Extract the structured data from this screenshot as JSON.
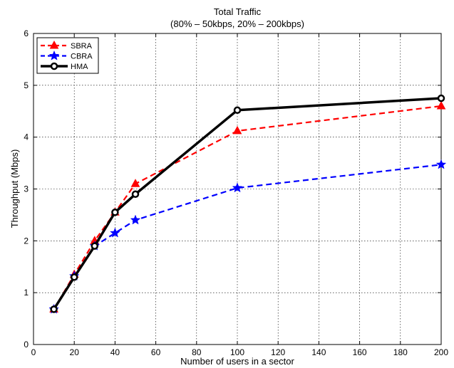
{
  "chart_data": {
    "type": "line",
    "title": "Total Traffic",
    "subtitle": "(80% – 50kbps, 20% – 200kbps)",
    "xlabel": "Number of users in a sector",
    "ylabel": "Throughput (Mbps)",
    "xlim": [
      0,
      200
    ],
    "ylim": [
      0,
      6
    ],
    "xticks": [
      0,
      20,
      40,
      60,
      80,
      100,
      120,
      140,
      160,
      180,
      200
    ],
    "yticks": [
      0,
      1,
      2,
      3,
      4,
      5,
      6
    ],
    "grid": true,
    "legend_position": "top-left",
    "x": [
      10,
      20,
      30,
      40,
      50,
      100,
      200
    ],
    "series": [
      {
        "name": "SBRA",
        "values": [
          0.68,
          1.35,
          2.0,
          2.55,
          3.1,
          4.12,
          4.6
        ],
        "color": "#ff0000",
        "dash": "dashed",
        "marker": "triangle"
      },
      {
        "name": "CBRA",
        "values": [
          0.68,
          1.32,
          1.9,
          2.15,
          2.4,
          3.02,
          3.47
        ],
        "color": "#0000ff",
        "dash": "dashed",
        "marker": "star"
      },
      {
        "name": "HMA",
        "values": [
          0.68,
          1.3,
          1.9,
          2.55,
          2.9,
          4.52,
          4.75
        ],
        "color": "#000000",
        "dash": "solid",
        "marker": "circle"
      }
    ]
  }
}
